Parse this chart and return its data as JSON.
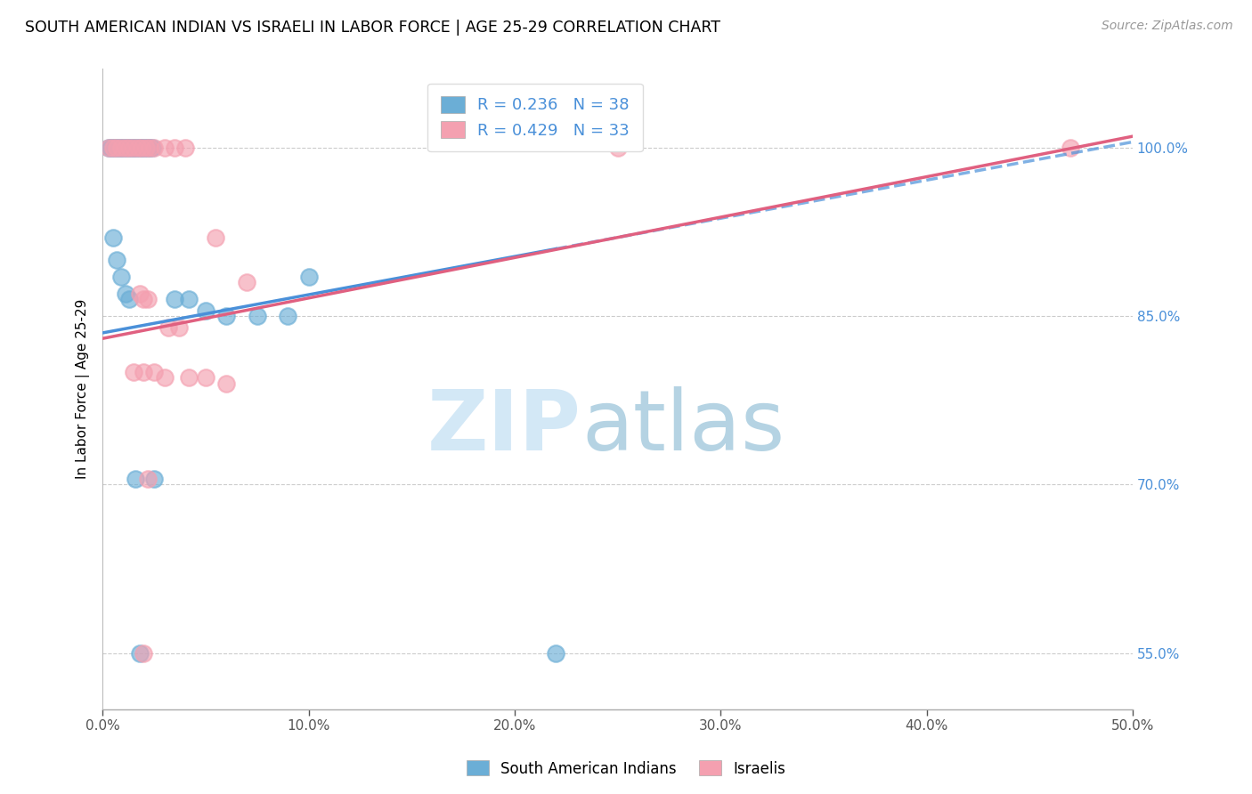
{
  "title": "SOUTH AMERICAN INDIAN VS ISRAELI IN LABOR FORCE | AGE 25-29 CORRELATION CHART",
  "source": "Source: ZipAtlas.com",
  "ylabel": "In Labor Force | Age 25-29",
  "xlim": [
    0.0,
    50.0
  ],
  "ylim": [
    50.0,
    107.0
  ],
  "xticks": [
    0.0,
    10.0,
    20.0,
    30.0,
    40.0,
    50.0
  ],
  "yticks": [
    55.0,
    70.0,
    85.0,
    100.0
  ],
  "ytick_labels": [
    "55.0%",
    "70.0%",
    "85.0%",
    "100.0%"
  ],
  "xtick_labels": [
    "0.0%",
    "10.0%",
    "20.0%",
    "30.0%",
    "40.0%",
    "50.0%"
  ],
  "legend_r1": "R = 0.236",
  "legend_n1": "N = 38",
  "legend_r2": "R = 0.429",
  "legend_n2": "N = 33",
  "color_blue": "#6baed6",
  "color_pink": "#f4a0b0",
  "color_line_blue": "#4a90d9",
  "color_line_pink": "#e06080",
  "color_text_blue": "#4a90d9",
  "blue_scatter_x": [
    0.3,
    0.4,
    0.5,
    0.6,
    0.7,
    0.8,
    0.9,
    1.0,
    1.1,
    1.2,
    1.3,
    1.4,
    1.5,
    1.6,
    1.7,
    1.8,
    1.9,
    2.0,
    2.1,
    2.2,
    2.3,
    2.4,
    0.5,
    0.7,
    0.9,
    1.1,
    1.3,
    3.5,
    4.2,
    5.0,
    6.0,
    7.5,
    9.0,
    10.0,
    1.6,
    2.5,
    1.8,
    22.0
  ],
  "blue_scatter_y": [
    100.0,
    100.0,
    100.0,
    100.0,
    100.0,
    100.0,
    100.0,
    100.0,
    100.0,
    100.0,
    100.0,
    100.0,
    100.0,
    100.0,
    100.0,
    100.0,
    100.0,
    100.0,
    100.0,
    100.0,
    100.0,
    100.0,
    92.0,
    90.0,
    88.5,
    87.0,
    86.5,
    86.5,
    86.5,
    85.5,
    85.0,
    85.0,
    85.0,
    88.5,
    70.5,
    70.5,
    55.0,
    55.0
  ],
  "pink_scatter_x": [
    0.3,
    0.5,
    0.7,
    0.9,
    1.1,
    1.3,
    1.5,
    1.7,
    1.9,
    2.1,
    2.3,
    2.5,
    3.0,
    3.5,
    4.0,
    5.5,
    7.0,
    1.8,
    2.0,
    2.2,
    3.2,
    3.7,
    1.5,
    2.0,
    2.5,
    3.0,
    4.2,
    5.0,
    6.0,
    2.2,
    2.0,
    25.0,
    47.0
  ],
  "pink_scatter_y": [
    100.0,
    100.0,
    100.0,
    100.0,
    100.0,
    100.0,
    100.0,
    100.0,
    100.0,
    100.0,
    100.0,
    100.0,
    100.0,
    100.0,
    100.0,
    92.0,
    88.0,
    87.0,
    86.5,
    86.5,
    84.0,
    84.0,
    80.0,
    80.0,
    80.0,
    79.5,
    79.5,
    79.5,
    79.0,
    70.5,
    55.0,
    100.0,
    100.0
  ],
  "blue_line_x0": 0.0,
  "blue_line_x1": 50.0,
  "blue_line_y0": 83.5,
  "blue_line_y1": 100.5,
  "blue_dash_start_x": 22.0,
  "pink_line_x0": 0.0,
  "pink_line_x1": 50.0,
  "pink_line_y0": 83.0,
  "pink_line_y1": 101.0
}
